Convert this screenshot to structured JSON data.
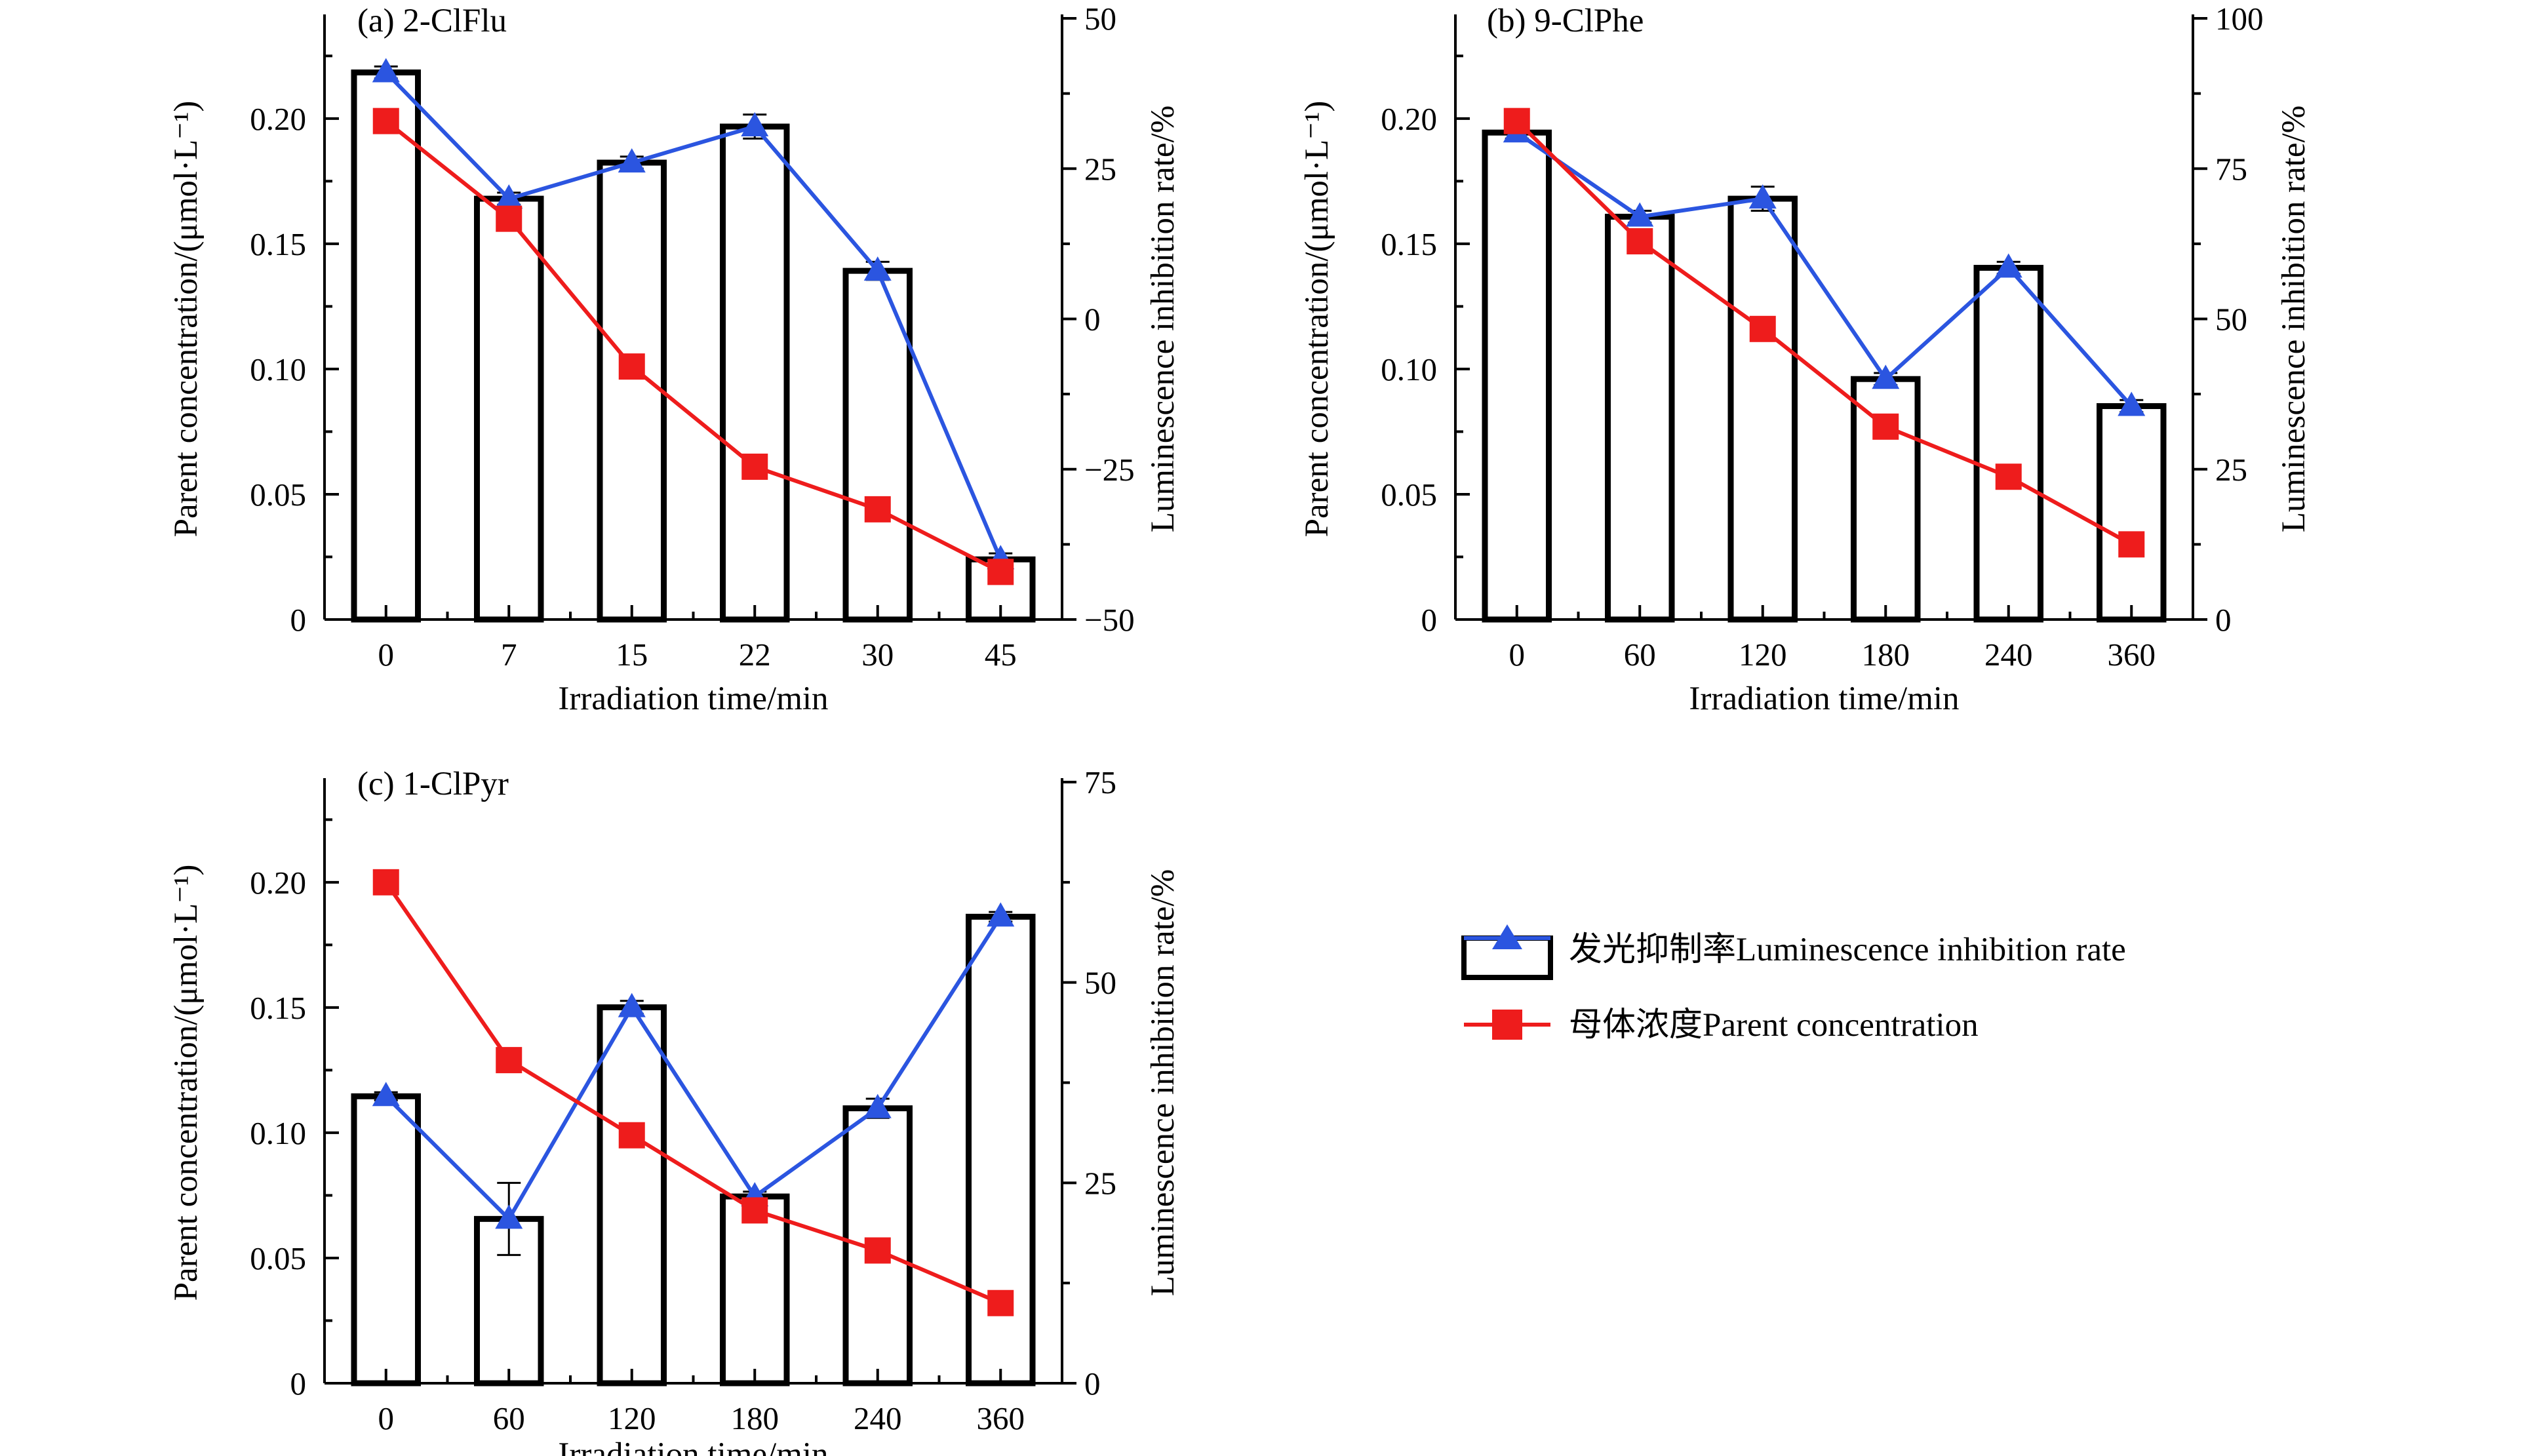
{
  "chart_data": [
    {
      "type": "bar",
      "title": "(a) 2-ClFlu",
      "xlabel": "Irradiation time/min",
      "ylabel": "Parent concentration/(μmol·L⁻¹)",
      "y2label": "Luminescence inhibition rate/%",
      "categories": [
        "0",
        "7",
        "15",
        "22",
        "30",
        "45"
      ],
      "ylim": [
        0,
        0.24
      ],
      "yticks": [
        "0",
        "0.05",
        "0.10",
        "0.15",
        "0.20"
      ],
      "y2lim": [
        -50,
        50
      ],
      "y2ticks": [
        "−50",
        "−25",
        "0",
        "25",
        "50"
      ],
      "series": [
        {
          "name": "发光抑制率Luminescence inhibition rate",
          "axis": "right",
          "values": [
            41,
            20,
            26,
            32,
            8,
            -40
          ],
          "errors": [
            1,
            1,
            1,
            2,
            1.5,
            1
          ]
        },
        {
          "name": "母体浓度Parent concentration",
          "axis": "left",
          "values": [
            0.199,
            0.16,
            0.101,
            0.061,
            0.044,
            0.019
          ]
        }
      ]
    },
    {
      "type": "bar",
      "title": "(b) 9-ClPhe",
      "xlabel": "Irradiation time/min",
      "ylabel": "Parent concentration/(μmol·L⁻¹)",
      "y2label": "Luminescence inhibition rate/%",
      "categories": [
        "0",
        "60",
        "120",
        "180",
        "240",
        "360"
      ],
      "ylim": [
        0,
        0.24
      ],
      "yticks": [
        "0",
        "0.05",
        "0.10",
        "0.15",
        "0.20"
      ],
      "y2lim": [
        0,
        100
      ],
      "y2ticks": [
        "0",
        "25",
        "50",
        "75",
        "100"
      ],
      "series": [
        {
          "name": "发光抑制率Luminescence inhibition rate",
          "axis": "right",
          "values": [
            81,
            67,
            70,
            40,
            58.5,
            35.5
          ],
          "errors": [
            1,
            1,
            2,
            1,
            1,
            1
          ]
        },
        {
          "name": "母体浓度Parent concentration",
          "axis": "left",
          "values": [
            0.199,
            0.151,
            0.116,
            0.077,
            0.057,
            0.03
          ]
        }
      ]
    },
    {
      "type": "bar",
      "title": "(c) 1-ClPyr",
      "xlabel": "Irradiation time/min",
      "ylabel": "Parent concentration/(μmol·L⁻¹)",
      "y2label": "Luminescence inhibition rate/%",
      "categories": [
        "0",
        "60",
        "120",
        "180",
        "240",
        "360"
      ],
      "ylim": [
        0,
        0.24
      ],
      "yticks": [
        "0",
        "0.05",
        "0.10",
        "0.15",
        "0.20"
      ],
      "y2lim": [
        0,
        75
      ],
      "y2ticks": [
        "0",
        "25",
        "50",
        "75"
      ],
      "series": [
        {
          "name": "发光抑制率Luminescence inhibition rate",
          "axis": "right",
          "values": [
            35.8,
            20.5,
            46.9,
            23.3,
            34.3,
            58.2
          ],
          "errors": [
            0.5,
            4.5,
            0.8,
            0.6,
            1.2,
            0.6
          ]
        },
        {
          "name": "母体浓度Parent concentration",
          "axis": "left",
          "values": [
            0.2,
            0.129,
            0.099,
            0.069,
            0.053,
            0.032
          ]
        }
      ]
    }
  ],
  "legend": {
    "inhibition_label": "发光抑制率Luminescence inhibition rate",
    "concentration_label": "母体浓度Parent concentration"
  },
  "colors": {
    "inhibition": "#2b55e0",
    "concentration": "#ee1c1c",
    "bar_stroke": "#000000"
  }
}
